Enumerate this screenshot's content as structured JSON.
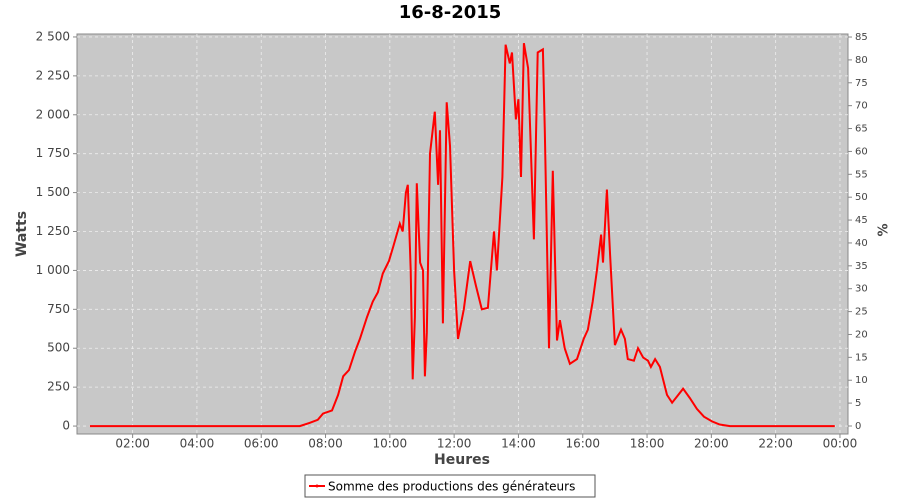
{
  "chart_data": {
    "type": "line",
    "title": "16-8-2015",
    "x_label": "Heures",
    "y_label": "Watts",
    "y2_label": "%",
    "x": [
      0.67,
      7.2,
      7.5,
      7.76,
      7.92,
      8.2,
      8.39,
      8.55,
      8.73,
      8.92,
      9.07,
      9.29,
      9.47,
      9.63,
      9.78,
      9.97,
      10.1,
      10.31,
      10.4,
      10.5,
      10.56,
      10.65,
      10.71,
      10.78,
      10.84,
      10.94,
      11.03,
      11.09,
      11.15,
      11.25,
      11.4,
      11.5,
      11.56,
      11.65,
      11.77,
      11.87,
      12.0,
      12.12,
      12.3,
      12.5,
      12.68,
      12.86,
      13.05,
      13.24,
      13.33,
      13.5,
      13.6,
      13.73,
      13.8,
      13.92,
      14.0,
      14.08,
      14.17,
      14.3,
      14.48,
      14.6,
      14.76,
      14.82,
      14.95,
      15.07,
      15.2,
      15.29,
      15.44,
      15.6,
      15.82,
      16.03,
      16.16,
      16.31,
      16.44,
      16.57,
      16.63,
      16.75,
      16.85,
      17.0,
      17.19,
      17.31,
      17.4,
      17.59,
      17.72,
      17.88,
      18.03,
      18.12,
      18.25,
      18.4,
      18.62,
      18.78,
      18.93,
      19.12,
      19.33,
      19.55,
      19.77,
      20.02,
      20.26,
      20.58,
      23.84
    ],
    "series": [
      {
        "name": "Somme des productions des  générateurs",
        "color": "#ff0000",
        "values": [
          0,
          0,
          20,
          40,
          80,
          100,
          200,
          320,
          360,
          480,
          560,
          700,
          800,
          860,
          980,
          1060,
          1150,
          1300,
          1250,
          1500,
          1550,
          1000,
          300,
          700,
          1560,
          1050,
          1000,
          320,
          600,
          1750,
          2020,
          1550,
          1900,
          660,
          2080,
          1800,
          1000,
          560,
          750,
          1060,
          900,
          750,
          760,
          1250,
          1000,
          1600,
          2450,
          2330,
          2400,
          1970,
          2100,
          1600,
          2460,
          2300,
          1200,
          2400,
          2420,
          1900,
          500,
          1640,
          550,
          680,
          500,
          400,
          430,
          560,
          620,
          800,
          1000,
          1230,
          1050,
          1520,
          1100,
          520,
          620,
          560,
          430,
          420,
          500,
          440,
          420,
          380,
          430,
          380,
          200,
          150,
          190,
          240,
          180,
          110,
          60,
          30,
          10,
          0,
          0
        ]
      }
    ],
    "xlim": [
      0.27,
      24.25
    ],
    "xticks": [
      {
        "value": 2,
        "label": "02:00"
      },
      {
        "value": 4,
        "label": "04:00"
      },
      {
        "value": 6,
        "label": "06:00"
      },
      {
        "value": 8,
        "label": "08:00"
      },
      {
        "value": 10,
        "label": "10:00"
      },
      {
        "value": 12,
        "label": "12:00"
      },
      {
        "value": 14,
        "label": "14:00"
      },
      {
        "value": 16,
        "label": "16:00"
      },
      {
        "value": 18,
        "label": "18:00"
      },
      {
        "value": 20,
        "label": "20:00"
      },
      {
        "value": 22,
        "label": "22:00"
      },
      {
        "value": 24,
        "label": "00:00"
      }
    ],
    "ylim": [
      -51,
      2519
    ],
    "yticks": [
      0,
      250,
      500,
      750,
      {
        "value": 1000,
        "label": "1 000"
      },
      {
        "value": 1250,
        "label": "1 250"
      },
      {
        "value": 1500,
        "label": "1 500"
      },
      {
        "value": 1750,
        "label": "1 750"
      },
      {
        "value": 2000,
        "label": "2 000"
      },
      {
        "value": 2250,
        "label": "2 250"
      },
      {
        "value": 2500,
        "label": "2 500"
      }
    ],
    "y2lim": [
      -1.75,
      85.66
    ],
    "y2ticks": [
      0,
      5,
      10,
      15,
      20,
      25,
      30,
      35,
      40,
      45,
      50,
      55,
      60,
      65,
      70,
      75,
      80,
      85
    ],
    "grid": true,
    "legend": "bottom"
  }
}
